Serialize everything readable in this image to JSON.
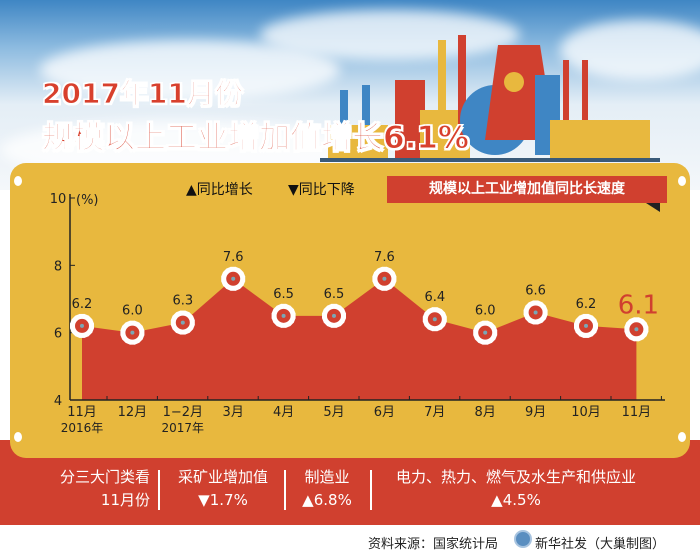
{
  "header": {
    "title_line1": "2017年11月份",
    "title_line2": "规模以上工业增加值增长6.1%"
  },
  "legend": {
    "up": "▲同比增长",
    "down": "▼同比下降",
    "series_box": "规模以上工业增加值同比长速度"
  },
  "colors": {
    "red": "#d0402f",
    "yellow": "#e8b83e",
    "sky": "#3f86c4"
  },
  "chart_data": {
    "type": "area",
    "title": "规模以上工业增加值同比长速度",
    "ylabel": "(%)",
    "ylim": [
      4,
      10
    ],
    "yticks": [
      "4",
      "6",
      "8",
      "10"
    ],
    "categories": [
      "11月",
      "12月",
      "1−2月",
      "3月",
      "4月",
      "5月",
      "6月",
      "7月",
      "8月",
      "9月",
      "10月",
      "11月"
    ],
    "year_labels": [
      {
        "index": 0,
        "label": "2016年"
      },
      {
        "index": 2,
        "label": "2017年"
      }
    ],
    "values": [
      6.2,
      6.0,
      6.3,
      7.6,
      6.5,
      6.5,
      7.6,
      6.4,
      6.0,
      6.6,
      6.2,
      6.1
    ],
    "data_labels": [
      "6.2",
      "6.0",
      "6.3",
      "7.6",
      "6.5",
      "6.5",
      "7.6",
      "6.4",
      "6.0",
      "6.6",
      "6.2",
      "6.1"
    ],
    "grid": false,
    "marker": "gear"
  },
  "breakdown": {
    "heading_line1": "分三大门类看",
    "heading_line2": "11月份",
    "items": [
      {
        "label": "采矿业增加值",
        "value": "▼1.7%"
      },
      {
        "label": "制造业",
        "value": "▲6.8%"
      },
      {
        "label": "电力、热力、燃气及水生产和供应业",
        "value": "▲4.5%"
      }
    ]
  },
  "footer": {
    "source": "资料来源：国家统计局",
    "credit": "新华社发（大巢制图）"
  }
}
